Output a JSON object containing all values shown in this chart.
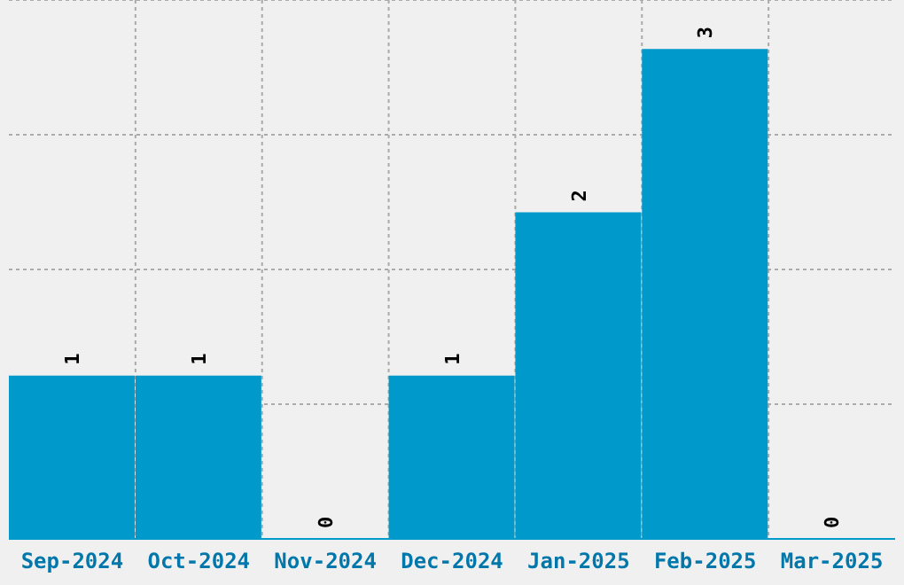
{
  "chart_data": {
    "type": "bar",
    "categories": [
      "Sep-2024",
      "Oct-2024",
      "Nov-2024",
      "Dec-2024",
      "Jan-2025",
      "Feb-2025",
      "Mar-2025"
    ],
    "values": [
      1,
      1,
      0,
      1,
      2,
      3,
      0
    ],
    "color": "#0099cc",
    "ylim": [
      0,
      3.3
    ],
    "yticks": [
      {
        "value": 0,
        "label": null
      },
      {
        "value": 0.825,
        "label": null
      },
      {
        "value": 1.65,
        "label": null
      },
      {
        "value": 2.475,
        "label": null
      },
      {
        "value": 3.3,
        "label": null
      }
    ],
    "tick_labels": "x",
    "grid": true,
    "data_labels": true
  }
}
